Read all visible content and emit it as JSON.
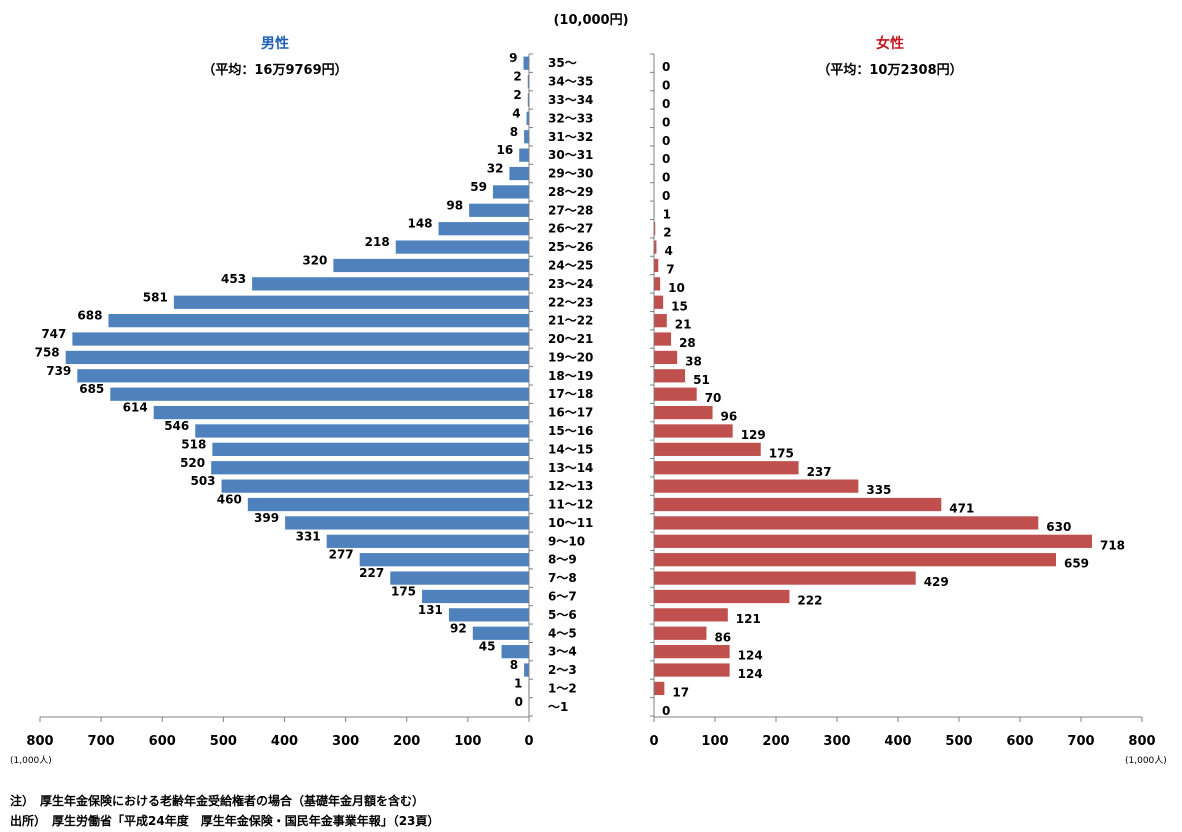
{
  "chart_data": {
    "type": "bar",
    "orientation": "horizontal",
    "unit_top": "(10,000円)",
    "x_unit": "(1,000人)",
    "categories": [
      "35～",
      "34～35",
      "33～34",
      "32～33",
      "31～32",
      "30～31",
      "29～30",
      "28～29",
      "27～28",
      "26～27",
      "25～26",
      "24～25",
      "23～24",
      "22～23",
      "21～22",
      "20～21",
      "19～20",
      "18～19",
      "17～18",
      "16～17",
      "15～16",
      "14～15",
      "13～14",
      "12～13",
      "11～12",
      "10～11",
      "9～10",
      "8～9",
      "7～8",
      "6～7",
      "5～6",
      "4～5",
      "3～4",
      "2～3",
      "1～2",
      "～1"
    ],
    "xlim": [
      0,
      800
    ],
    "xticks": [
      0,
      100,
      200,
      300,
      400,
      500,
      600,
      700,
      800
    ],
    "xtick_labels_left": [
      "0",
      "100",
      "200",
      "300",
      "400",
      "500",
      "600",
      "700",
      "800"
    ],
    "xtick_labels_right": [
      "0",
      "100",
      "200",
      "300",
      "400",
      "500",
      "600",
      "700",
      "800"
    ],
    "series": [
      {
        "name": "男性",
        "subtitle": "（平均：16万9769円）",
        "color": "#4f81bd",
        "values": [
          9,
          2,
          2,
          4,
          8,
          16,
          32,
          59,
          98,
          148,
          218,
          320,
          453,
          581,
          688,
          747,
          758,
          739,
          685,
          614,
          546,
          518,
          520,
          503,
          460,
          399,
          331,
          277,
          227,
          175,
          131,
          92,
          45,
          8,
          1,
          0
        ]
      },
      {
        "name": "女性",
        "subtitle": "（平均：10万2308円）",
        "color": "#c0504d",
        "values": [
          0,
          0,
          0,
          0,
          0,
          0,
          0,
          0,
          1,
          2,
          4,
          7,
          10,
          15,
          21,
          28,
          38,
          51,
          70,
          96,
          129,
          175,
          237,
          335,
          471,
          630,
          718,
          659,
          429,
          222,
          121,
          86,
          124,
          124,
          17,
          0
        ]
      }
    ],
    "notes": [
      "注）　厚生年金保険における老齢年金受給権者の場合（基礎年金月額を含む）",
      "出所）　厚生労働省「平成24年度　厚生年金保険・国民年金事業年報」（23頁）"
    ]
  }
}
